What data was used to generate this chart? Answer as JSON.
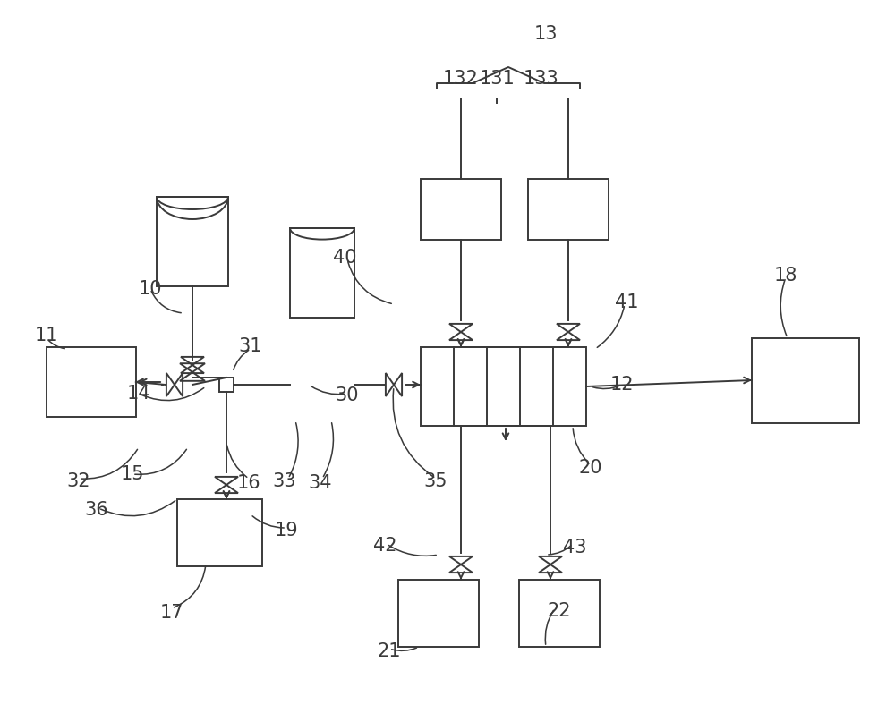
{
  "bg_color": "#ffffff",
  "line_color": "#3a3a3a",
  "figsize": [
    10.0,
    8.07
  ],
  "dpi": 100,
  "lw": 1.4
}
